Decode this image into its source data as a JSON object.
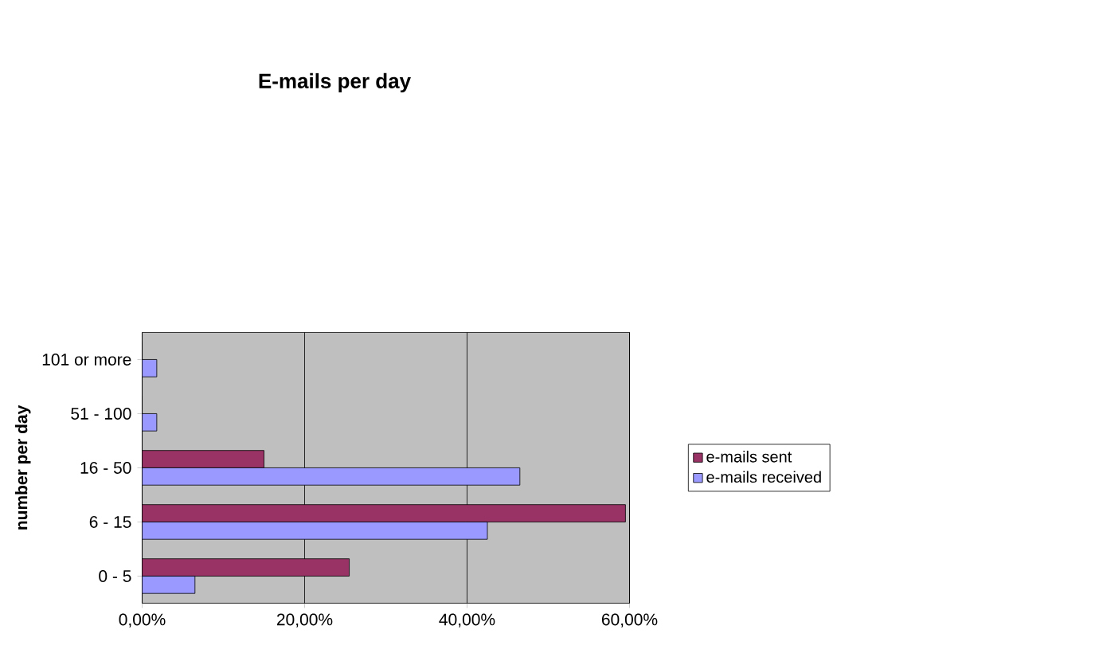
{
  "chart_data": {
    "type": "bar",
    "orientation": "horizontal",
    "title": "E-mails per day",
    "ylabel": "number per day",
    "categories": [
      "101 or more",
      "51 - 100",
      "16 - 50",
      "6 - 15",
      "0 - 5"
    ],
    "series": [
      {
        "name": "e-mails sent",
        "color": "#993366",
        "values": [
          0,
          0,
          15,
          59.5,
          25.5
        ]
      },
      {
        "name": "e-mails received",
        "color": "#9999ff",
        "values": [
          1.8,
          1.8,
          46.5,
          42.5,
          6.5
        ]
      }
    ],
    "xlim": [
      0,
      60
    ],
    "xticks": [
      {
        "value": 0,
        "label": "0,00%"
      },
      {
        "value": 20,
        "label": "20,00%"
      },
      {
        "value": 40,
        "label": "40,00%"
      },
      {
        "value": 60,
        "label": "60,00%"
      }
    ],
    "grid": "x",
    "legend": "right"
  }
}
